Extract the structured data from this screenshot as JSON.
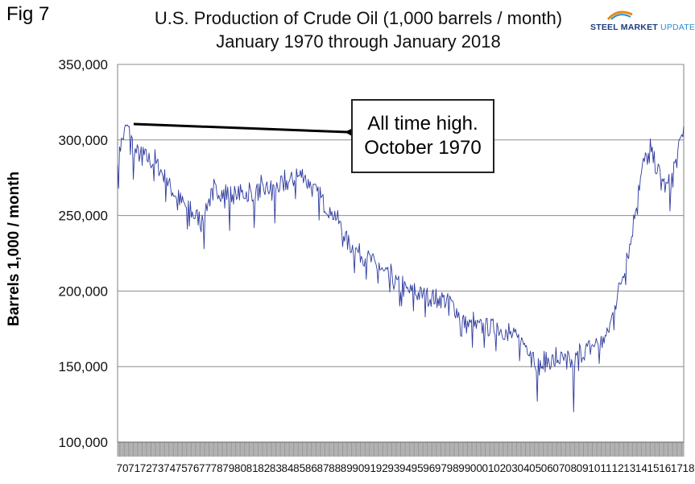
{
  "figure_label": "Fig 7",
  "logo": {
    "brand": "STEEL",
    "brand2": "MARKET",
    "brand3": "UPDATE",
    "colors": [
      "#1d3c7a",
      "#2a8fd0",
      "#e58a1f"
    ]
  },
  "chart_data": {
    "type": "line",
    "title": "U.S. Production of Crude Oil (1,000 barrels / month)",
    "subtitle": "January 1970 through January 2018",
    "ylabel": "Barrels 1,000 / month",
    "xlabel": "",
    "ylim": [
      100000,
      350000
    ],
    "y_ticks": [
      100000,
      150000,
      200000,
      250000,
      300000,
      350000
    ],
    "y_tick_labels": [
      "100,000",
      "150,000",
      "200,000",
      "250,000",
      "300,000",
      "350,000"
    ],
    "x_range": [
      1970.0,
      2018.0
    ],
    "x_tick_labels": [
      "70",
      "71",
      "72",
      "73",
      "74",
      "75",
      "76",
      "77",
      "78",
      "79",
      "80",
      "81",
      "82",
      "83",
      "84",
      "85",
      "86",
      "87",
      "88",
      "89",
      "90",
      "91",
      "92",
      "93",
      "94",
      "95",
      "96",
      "97",
      "98",
      "99",
      "00",
      "01",
      "02",
      "03",
      "04",
      "05",
      "06",
      "07",
      "08",
      "09",
      "10",
      "11",
      "12",
      "13",
      "14",
      "15",
      "16",
      "17",
      "18"
    ],
    "grid": true,
    "line_color": "#2e3a9e",
    "series": [
      {
        "name": "U.S. crude oil production",
        "anchors": [
          [
            1970.0,
            290000
          ],
          [
            1970.8,
            310000
          ],
          [
            1971.5,
            292000
          ],
          [
            1972.5,
            288000
          ],
          [
            1973.5,
            282000
          ],
          [
            1974.5,
            268000
          ],
          [
            1975.5,
            258000
          ],
          [
            1976.5,
            250000
          ],
          [
            1977.0,
            248000
          ],
          [
            1977.6,
            258000
          ],
          [
            1978.4,
            268000
          ],
          [
            1979.0,
            264000
          ],
          [
            1980.0,
            264000
          ],
          [
            1981.0,
            265000
          ],
          [
            1982.0,
            266000
          ],
          [
            1983.0,
            268000
          ],
          [
            1984.0,
            270000
          ],
          [
            1985.0,
            274000
          ],
          [
            1985.8,
            278000
          ],
          [
            1986.5,
            268000
          ],
          [
            1987.5,
            258000
          ],
          [
            1988.5,
            250000
          ],
          [
            1989.5,
            232000
          ],
          [
            1990.5,
            225000
          ],
          [
            1991.5,
            220000
          ],
          [
            1992.5,
            212000
          ],
          [
            1993.5,
            206000
          ],
          [
            1994.5,
            200000
          ],
          [
            1995.5,
            198000
          ],
          [
            1996.5,
            196000
          ],
          [
            1997.5,
            195000
          ],
          [
            1998.5,
            190000
          ],
          [
            1999.5,
            178000
          ],
          [
            2000.5,
            176000
          ],
          [
            2001.5,
            176000
          ],
          [
            2002.5,
            175000
          ],
          [
            2003.5,
            170000
          ],
          [
            2004.5,
            165000
          ],
          [
            2005.0,
            162000
          ],
          [
            2005.7,
            150000
          ],
          [
            2006.5,
            154000
          ],
          [
            2007.5,
            155000
          ],
          [
            2008.5,
            152000
          ],
          [
            2009.5,
            160000
          ],
          [
            2010.5,
            165000
          ],
          [
            2011.5,
            170000
          ],
          [
            2012.0,
            185000
          ],
          [
            2012.8,
            210000
          ],
          [
            2013.5,
            232000
          ],
          [
            2014.0,
            260000
          ],
          [
            2014.6,
            285000
          ],
          [
            2015.2,
            292000
          ],
          [
            2015.8,
            280000
          ],
          [
            2016.5,
            268000
          ],
          [
            2017.0,
            275000
          ],
          [
            2017.5,
            290000
          ],
          [
            2018.0,
            309000
          ]
        ],
        "dips": [
          [
            1970.1,
            268000
          ],
          [
            1971.3,
            274000
          ],
          [
            1975.9,
            241000
          ],
          [
            1977.3,
            228000
          ],
          [
            1979.5,
            240000
          ],
          [
            1981.6,
            242000
          ],
          [
            1983.3,
            245000
          ],
          [
            1990.1,
            212000
          ],
          [
            1993.9,
            190000
          ],
          [
            1999.2,
            170000
          ],
          [
            2005.6,
            127000
          ],
          [
            2008.7,
            120000
          ],
          [
            2010.8,
            152000
          ],
          [
            2016.8,
            253000
          ]
        ]
      }
    ],
    "annotation": {
      "lines": [
        "All time high.",
        "October 1970"
      ],
      "points_to": [
        1970.8,
        310000
      ]
    }
  }
}
